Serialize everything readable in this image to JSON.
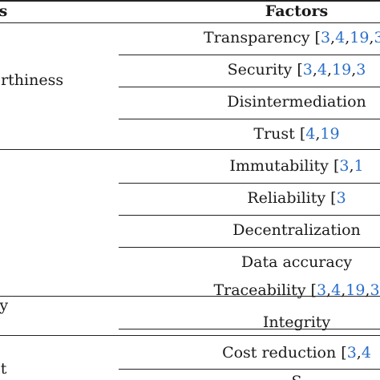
{
  "header": {
    "category": "Benefits",
    "factors": "Factors"
  },
  "sections": [
    {
      "category": "Trustworthiness",
      "factors": [
        {
          "name": "Transparency",
          "refs": [
            "3",
            "4",
            "19",
            "3"
          ]
        },
        {
          "name": "Security",
          "refs": [
            "3",
            "4",
            "19",
            "3"
          ]
        },
        {
          "name": "Disintermediation",
          "refs": []
        },
        {
          "name": "Trust",
          "refs": [
            "4",
            "19"
          ]
        }
      ]
    },
    {
      "category": "",
      "factors": [
        {
          "name": "Immutability",
          "refs": [
            "3",
            "1"
          ]
        },
        {
          "name": "Reliability",
          "refs": [
            "3"
          ]
        },
        {
          "name": "Decentralization",
          "refs": []
        },
        {
          "name": "Data accuracy",
          "refs": []
        }
      ]
    },
    {
      "category": "Traceability",
      "factors": [
        {
          "name": "Traceability",
          "refs": [
            "3",
            "4",
            "19",
            "3"
          ]
        },
        {
          "name": "Integrity",
          "refs": []
        }
      ]
    },
    {
      "category": "Cost",
      "factors": [
        {
          "name": "Cost reduction",
          "refs": [
            "3",
            "4"
          ]
        },
        {
          "name": "S",
          "refs": []
        }
      ]
    }
  ]
}
